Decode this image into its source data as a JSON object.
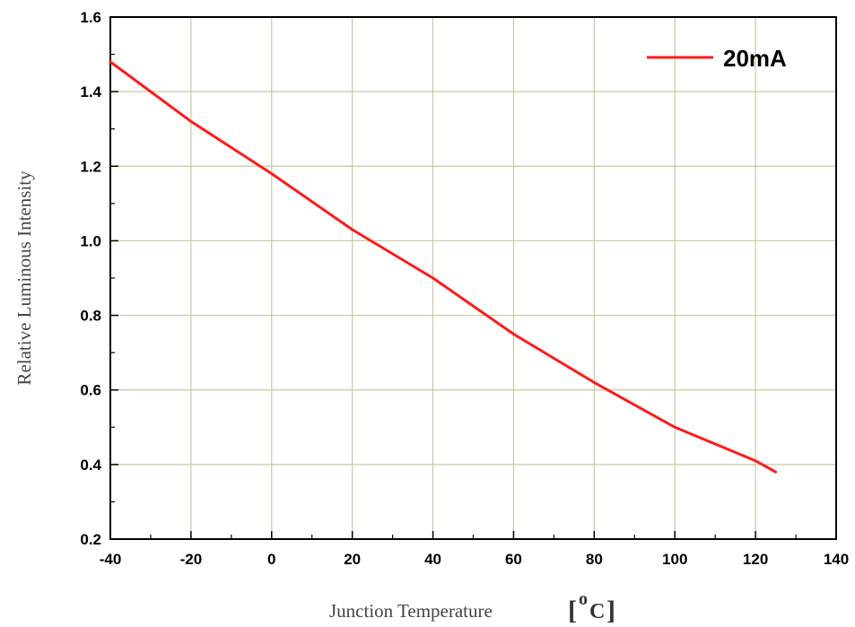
{
  "chart_data": {
    "type": "line",
    "title": "",
    "xlabel": "Junction Temperature",
    "xlabel_unit_superscript": "o",
    "xlabel_unit_letter": "C",
    "ylabel": "Relative Luminous Intensity",
    "xlim": [
      -40,
      140
    ],
    "ylim": [
      0.2,
      1.6
    ],
    "xticks": [
      -40,
      -20,
      0,
      20,
      40,
      60,
      80,
      100,
      120,
      140
    ],
    "xtick_labels": [
      "-40",
      "-20",
      "0",
      "20",
      "40",
      "60",
      "80",
      "100",
      "120",
      "140"
    ],
    "yticks": [
      0.2,
      0.4,
      0.6,
      0.8,
      1.0,
      1.2,
      1.4,
      1.6
    ],
    "ytick_labels": [
      "0.2",
      "0.4",
      "0.6",
      "0.8",
      "1.0",
      "1.2",
      "1.4",
      "1.6"
    ],
    "grid": true,
    "grid_color": "#c8c8a0",
    "legend_position": "top-right",
    "series": [
      {
        "name": "20mA",
        "color": "#ff1a1a",
        "x": [
          -40,
          -20,
          0,
          20,
          40,
          60,
          80,
          100,
          120,
          125
        ],
        "y": [
          1.48,
          1.32,
          1.18,
          1.03,
          0.9,
          0.75,
          0.62,
          0.5,
          0.41,
          0.38
        ]
      }
    ]
  }
}
